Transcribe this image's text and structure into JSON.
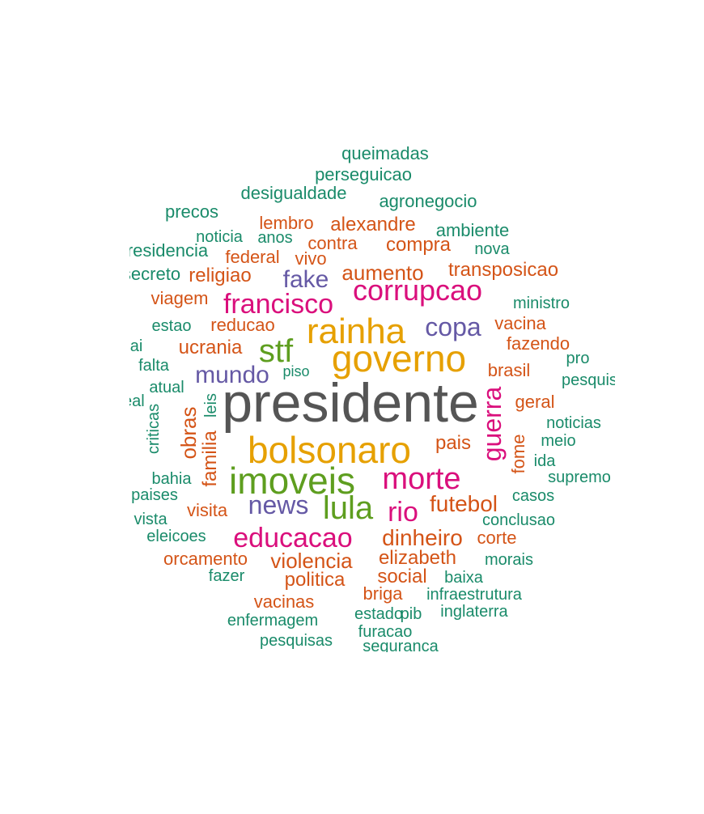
{
  "palette": {
    "grey": "#555555",
    "gold": "#E6A000",
    "green": "#5E9E1F",
    "magenta": "#DA0F7C",
    "purple": "#6559A5",
    "orange": "#D45417",
    "teal": "#1A8B6A"
  },
  "words": [
    {
      "text": "presidente",
      "color": "grey"
    },
    {
      "text": "bolsonaro",
      "color": "gold"
    },
    {
      "text": "governo",
      "color": "gold"
    },
    {
      "text": "rainha",
      "color": "gold"
    },
    {
      "text": "imoveis",
      "color": "green"
    },
    {
      "text": "lula",
      "color": "green"
    },
    {
      "text": "stf",
      "color": "green"
    },
    {
      "text": "morte",
      "color": "magenta"
    },
    {
      "text": "corrupcao",
      "color": "magenta"
    },
    {
      "text": "educacao",
      "color": "magenta"
    },
    {
      "text": "francisco",
      "color": "magenta"
    },
    {
      "text": "rio",
      "color": "magenta"
    },
    {
      "text": "guerra",
      "color": "magenta"
    },
    {
      "text": "news",
      "color": "purple"
    },
    {
      "text": "mundo",
      "color": "purple"
    },
    {
      "text": "copa",
      "color": "purple"
    },
    {
      "text": "fake",
      "color": "purple"
    },
    {
      "text": "dinheiro",
      "color": "orange"
    },
    {
      "text": "futebol",
      "color": "orange"
    },
    {
      "text": "violencia",
      "color": "orange"
    },
    {
      "text": "aumento",
      "color": "orange"
    },
    {
      "text": "transposicao",
      "color": "orange"
    },
    {
      "text": "compra",
      "color": "orange"
    },
    {
      "text": "alexandre",
      "color": "orange"
    },
    {
      "text": "ucrania",
      "color": "orange"
    },
    {
      "text": "obras",
      "color": "orange"
    },
    {
      "text": "familia",
      "color": "orange"
    },
    {
      "text": "elizabeth",
      "color": "orange"
    },
    {
      "text": "social",
      "color": "orange"
    },
    {
      "text": "politica",
      "color": "orange"
    },
    {
      "text": "pais",
      "color": "orange"
    },
    {
      "text": "brasil",
      "color": "orange"
    },
    {
      "text": "fome",
      "color": "orange"
    },
    {
      "text": "religiao",
      "color": "orange"
    },
    {
      "text": "federal",
      "color": "orange"
    },
    {
      "text": "contra",
      "color": "orange"
    },
    {
      "text": "lembro",
      "color": "orange"
    },
    {
      "text": "reducao",
      "color": "orange"
    },
    {
      "text": "viagem",
      "color": "orange"
    },
    {
      "text": "vivo",
      "color": "orange"
    },
    {
      "text": "vacina",
      "color": "orange"
    },
    {
      "text": "fazendo",
      "color": "orange"
    },
    {
      "text": "geral",
      "color": "orange"
    },
    {
      "text": "visita",
      "color": "orange"
    },
    {
      "text": "orcamento",
      "color": "orange"
    },
    {
      "text": "vacinas",
      "color": "orange"
    },
    {
      "text": "briga",
      "color": "orange"
    },
    {
      "text": "corte",
      "color": "orange"
    },
    {
      "text": "queimadas",
      "color": "teal"
    },
    {
      "text": "perseguicao",
      "color": "teal"
    },
    {
      "text": "desigualdade",
      "color": "teal"
    },
    {
      "text": "agronegocio",
      "color": "teal"
    },
    {
      "text": "precos",
      "color": "teal"
    },
    {
      "text": "ambiente",
      "color": "teal"
    },
    {
      "text": "noticia",
      "color": "teal"
    },
    {
      "text": "anos",
      "color": "teal"
    },
    {
      "text": "residencia",
      "color": "teal"
    },
    {
      "text": "nova",
      "color": "teal"
    },
    {
      "text": "secreto",
      "color": "teal"
    },
    {
      "text": "ministro",
      "color": "teal"
    },
    {
      "text": "estao",
      "color": "teal"
    },
    {
      "text": "pai",
      "color": "teal"
    },
    {
      "text": "pro",
      "color": "teal"
    },
    {
      "text": "falta",
      "color": "teal"
    },
    {
      "text": "piso",
      "color": "teal"
    },
    {
      "text": "pesquisa",
      "color": "teal"
    },
    {
      "text": "atual",
      "color": "teal"
    },
    {
      "text": "leis",
      "color": "teal"
    },
    {
      "text": "real",
      "color": "teal"
    },
    {
      "text": "noticias",
      "color": "teal"
    },
    {
      "text": "criticas",
      "color": "teal"
    },
    {
      "text": "meio",
      "color": "teal"
    },
    {
      "text": "ida",
      "color": "teal"
    },
    {
      "text": "bahia",
      "color": "teal"
    },
    {
      "text": "supremo",
      "color": "teal"
    },
    {
      "text": "paises",
      "color": "teal"
    },
    {
      "text": "casos",
      "color": "teal"
    },
    {
      "text": "vista",
      "color": "teal"
    },
    {
      "text": "conclusao",
      "color": "teal"
    },
    {
      "text": "eleicoes",
      "color": "teal"
    },
    {
      "text": "morais",
      "color": "teal"
    },
    {
      "text": "fazer",
      "color": "teal"
    },
    {
      "text": "baixa",
      "color": "teal"
    },
    {
      "text": "infraestrutura",
      "color": "teal"
    },
    {
      "text": "inglaterra",
      "color": "teal"
    },
    {
      "text": "estado",
      "color": "teal"
    },
    {
      "text": "pib",
      "color": "teal"
    },
    {
      "text": "enfermagem",
      "color": "teal"
    },
    {
      "text": "furacao",
      "color": "teal"
    },
    {
      "text": "pesquisas",
      "color": "teal"
    },
    {
      "text": "seguranca",
      "color": "teal"
    }
  ]
}
